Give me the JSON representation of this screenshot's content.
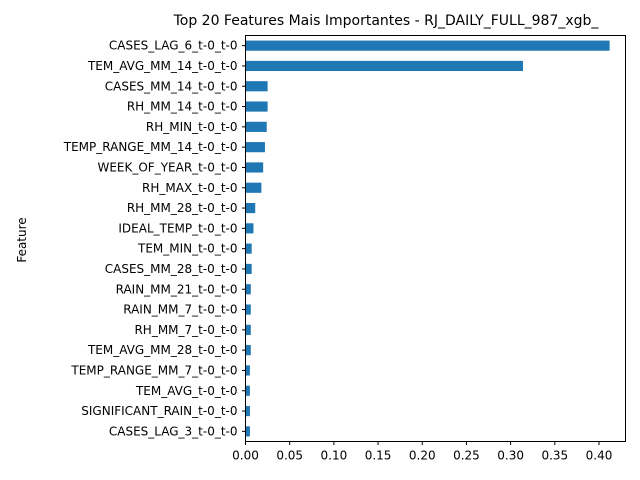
{
  "chart_data": {
    "type": "bar",
    "orientation": "horizontal",
    "title": "Top 20 Features Mais Importantes - RJ_DAILY_FULL_987_xgb_",
    "ylabel": "Feature",
    "xlabel": "",
    "xlim": [
      0,
      0.43
    ],
    "xticks": [
      "0.00",
      "0.05",
      "0.10",
      "0.15",
      "0.20",
      "0.25",
      "0.30",
      "0.35",
      "0.40"
    ],
    "bar_color": "#1f77b4",
    "grid": false,
    "categories": [
      "CASES_LAG_6_t-0_t-0",
      "TEM_AVG_MM_14_t-0_t-0",
      "CASES_MM_14_t-0_t-0",
      "RH_MM_14_t-0_t-0",
      "RH_MIN_t-0_t-0",
      "TEMP_RANGE_MM_14_t-0_t-0",
      "WEEK_OF_YEAR_t-0_t-0",
      "RH_MAX_t-0_t-0",
      "RH_MM_28_t-0_t-0",
      "IDEAL_TEMP_t-0_t-0",
      "TEM_MIN_t-0_t-0",
      "CASES_MM_28_t-0_t-0",
      "RAIN_MM_21_t-0_t-0",
      "RAIN_MM_7_t-0_t-0",
      "RH_MM_7_t-0_t-0",
      "TEM_AVG_MM_28_t-0_t-0",
      "TEMP_RANGE_MM_7_t-0_t-0",
      "TEM_AVG_t-0_t-0",
      "SIGNIFICANT_RAIN_t-0_t-0",
      "CASES_LAG_3_t-0_t-0"
    ],
    "values": [
      0.412,
      0.314,
      0.025,
      0.025,
      0.024,
      0.022,
      0.02,
      0.018,
      0.011,
      0.009,
      0.007,
      0.007,
      0.006,
      0.006,
      0.006,
      0.006,
      0.005,
      0.005,
      0.005,
      0.005
    ]
  }
}
